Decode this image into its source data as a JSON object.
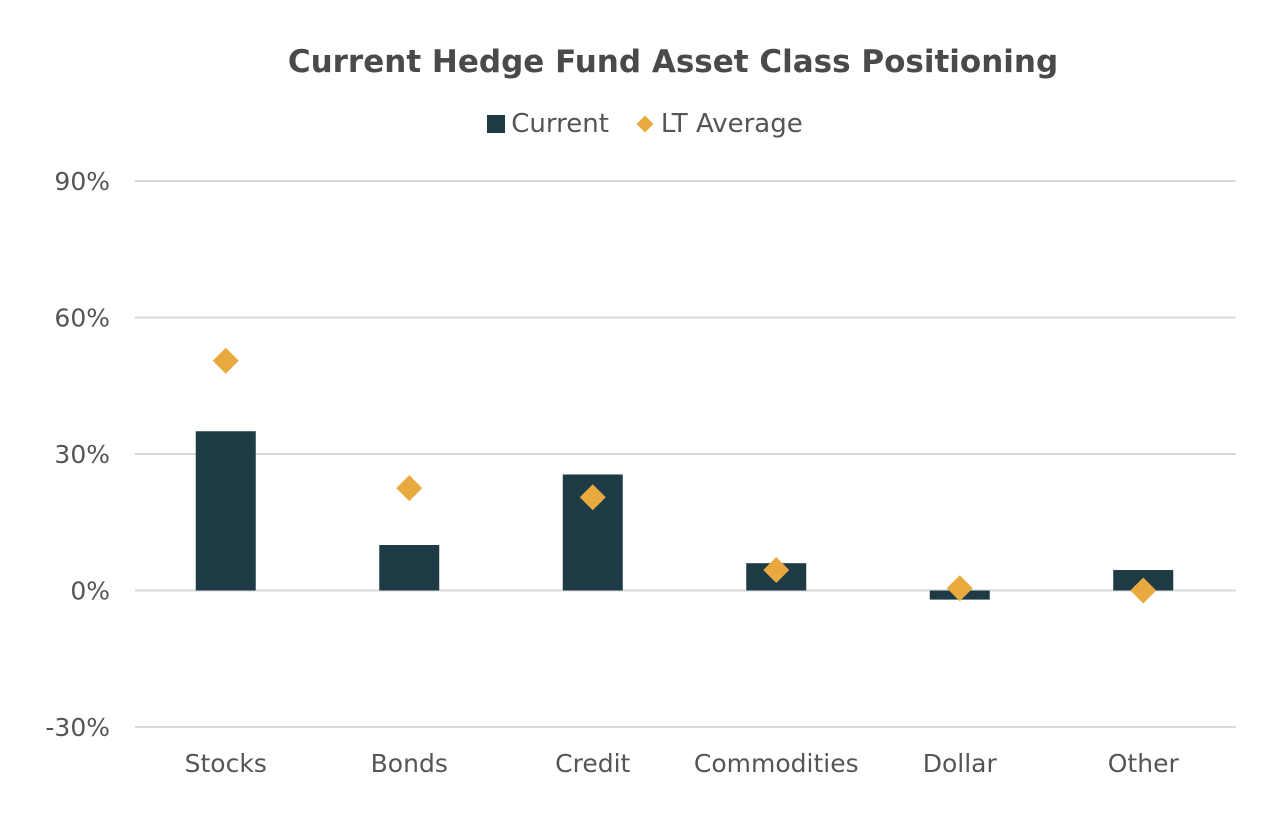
{
  "chart_data": {
    "type": "bar",
    "title": "Current Hedge Fund Asset Class Positioning",
    "categories": [
      "Stocks",
      "Bonds",
      "Credit",
      "Commodities",
      "Dollar",
      "Other"
    ],
    "series": [
      {
        "name": "Current",
        "kind": "bar",
        "color": "#1d3a45",
        "values": [
          35,
          10,
          25.5,
          6,
          -2,
          4.5
        ]
      },
      {
        "name": "LT Average",
        "kind": "marker-diamond",
        "color": "#e8a93e",
        "values": [
          50.5,
          22.5,
          20.5,
          4.5,
          0.5,
          0
        ]
      }
    ],
    "xlabel": "",
    "ylabel": "",
    "ylim": [
      -30,
      90
    ],
    "yticks": [
      90,
      60,
      30,
      0,
      -30
    ],
    "ytick_labels": [
      "90%",
      "60%",
      "30%",
      "0%",
      "-30%"
    ],
    "grid": true,
    "legend_position": "top-center"
  },
  "colors": {
    "gridline": "#d9d9d9",
    "axis_text": "#555555",
    "title_text": "#4a4a4a"
  }
}
